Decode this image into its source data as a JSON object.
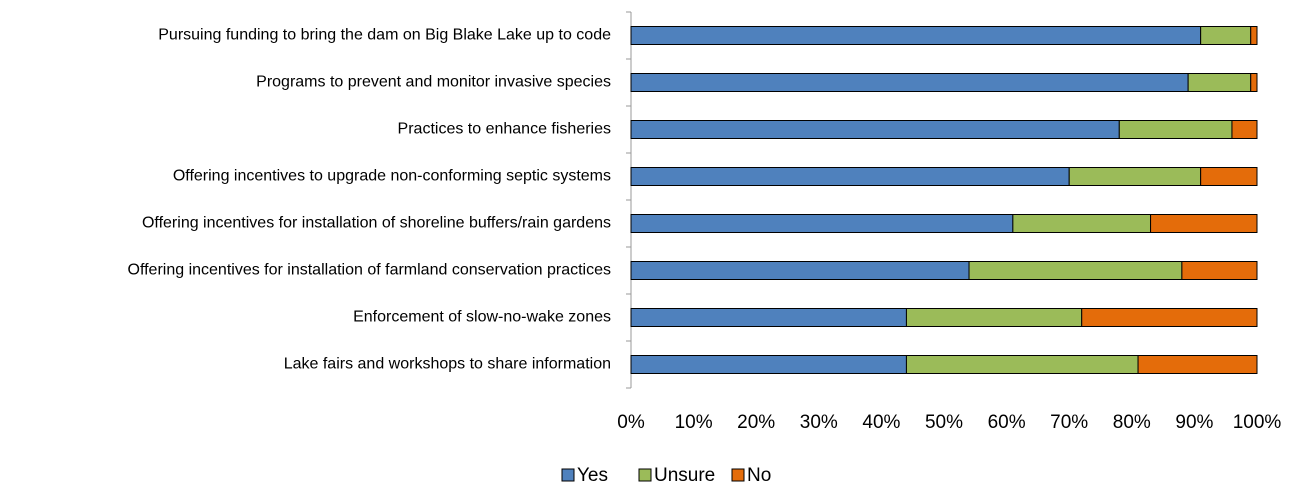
{
  "chart_data": {
    "type": "stacked_bar_horizontal",
    "categories": [
      "Pursuing funding to bring the dam on Big Blake Lake up to code",
      "Programs to prevent and monitor invasive species",
      "Practices to enhance fisheries",
      "Offering incentives to upgrade non-conforming septic systems",
      "Offering incentives for installation of shoreline buffers/rain gardens",
      "Offering incentives for installation of farmland conservation practices",
      "Enforcement of slow-no-wake zones",
      "Lake fairs and workshops to share information"
    ],
    "series": [
      {
        "name": "Yes",
        "color": "#4f81bd",
        "values": [
          91,
          89,
          78,
          70,
          61,
          54,
          44,
          44
        ]
      },
      {
        "name": "Unsure",
        "color": "#9bbb59",
        "values": [
          8,
          10,
          18,
          21,
          22,
          34,
          28,
          37
        ]
      },
      {
        "name": "No",
        "color": "#e46c0a",
        "values": [
          1,
          1,
          4,
          9,
          17,
          12,
          28,
          19
        ]
      }
    ],
    "xlim": [
      0,
      100
    ],
    "xticks": [
      {
        "value": 0,
        "label": "0%"
      },
      {
        "value": 10,
        "label": "10%"
      },
      {
        "value": 20,
        "label": "20%"
      },
      {
        "value": 30,
        "label": "30%"
      },
      {
        "value": 40,
        "label": "40%"
      },
      {
        "value": 50,
        "label": "50%"
      },
      {
        "value": 60,
        "label": "60%"
      },
      {
        "value": 70,
        "label": "70%"
      },
      {
        "value": 80,
        "label": "80%"
      },
      {
        "value": 90,
        "label": "90%"
      },
      {
        "value": 100,
        "label": "100%"
      }
    ],
    "grid": false,
    "legend": "bottom"
  }
}
